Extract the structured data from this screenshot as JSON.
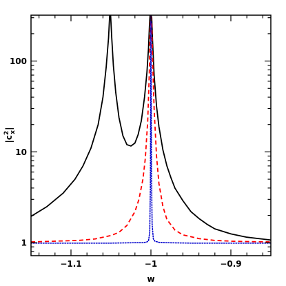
{
  "chart_data": {
    "type": "line",
    "title": "",
    "xlabel": "w",
    "ylabel": {
      "base": "|c",
      "sup": "2",
      "sub": "x",
      "end": "|"
    },
    "xlim": [
      -1.15,
      -0.85
    ],
    "ylim": [
      0.72,
      320
    ],
    "yscale": "log",
    "grid": false,
    "x_ticks": [
      {
        "value": -1.1,
        "label": "−1.1"
      },
      {
        "value": -1.0,
        "label": "−1"
      },
      {
        "value": -0.9,
        "label": "−0.9"
      }
    ],
    "y_ticks": [
      {
        "value": 1,
        "label": "1"
      },
      {
        "value": 10,
        "label": "10"
      },
      {
        "value": 100,
        "label": "100"
      }
    ],
    "series": [
      {
        "style": "solid",
        "color": "#000000",
        "x": [
          -1.15,
          -1.13,
          -1.11,
          -1.095,
          -1.085,
          -1.075,
          -1.066,
          -1.06,
          -1.056,
          -1.053,
          -1.0515,
          -1.0505,
          -1.049,
          -1.047,
          -1.044,
          -1.04,
          -1.035,
          -1.03,
          -1.025,
          -1.02,
          -1.016,
          -1.012,
          -1.008,
          -1.005,
          -1.003,
          -1.0018,
          -1.001,
          -1.0,
          -0.999,
          -0.998,
          -0.996,
          -0.993,
          -0.99,
          -0.985,
          -0.98,
          -0.975,
          -0.97,
          -0.96,
          -0.95,
          -0.94,
          -0.93,
          -0.92,
          -0.9,
          -0.88,
          -0.85
        ],
        "y": [
          1.95,
          2.5,
          3.5,
          5.0,
          7.0,
          11.0,
          20.0,
          40.0,
          85.0,
          180.0,
          330.0,
          330.0,
          180.0,
          90.0,
          45.0,
          24.0,
          15.0,
          12.0,
          11.6,
          12.5,
          15.5,
          22.0,
          40.0,
          75.0,
          140.0,
          250.0,
          330.0,
          330.0,
          300.0,
          170.0,
          70.0,
          32.0,
          19.0,
          10.5,
          7.0,
          5.2,
          4.0,
          2.9,
          2.2,
          1.85,
          1.6,
          1.42,
          1.25,
          1.15,
          1.07
        ]
      },
      {
        "style": "dashed",
        "color": "#ff0000",
        "x": [
          -1.15,
          -1.12,
          -1.09,
          -1.07,
          -1.05,
          -1.04,
          -1.03,
          -1.02,
          -1.015,
          -1.01,
          -1.007,
          -1.004,
          -1.002,
          -1.001,
          -1.0,
          -0.999,
          -0.998,
          -0.996,
          -0.993,
          -0.99,
          -0.985,
          -0.98,
          -0.97,
          -0.96,
          -0.94,
          -0.92,
          -0.9,
          -0.88,
          -0.85
        ],
        "y": [
          1.02,
          1.04,
          1.06,
          1.1,
          1.2,
          1.3,
          1.55,
          2.2,
          3.0,
          5.0,
          8.5,
          22.0,
          75.0,
          200.0,
          330.0,
          250.0,
          110.0,
          30.0,
          9.0,
          4.5,
          2.5,
          1.8,
          1.38,
          1.22,
          1.11,
          1.06,
          1.04,
          1.03,
          1.02
        ]
      },
      {
        "style": "dotted",
        "color": "#0000cc",
        "x": [
          -1.15,
          -1.05,
          -1.02,
          -1.01,
          -1.005,
          -1.003,
          -1.0015,
          -1.0007,
          -1.0003,
          -1.0,
          -0.9997,
          -0.9993,
          -0.9985,
          -0.997,
          -0.995,
          -0.99,
          -0.98,
          -0.95,
          -0.85
        ],
        "y": [
          0.99,
          0.99,
          1.0,
          1.0,
          1.02,
          1.05,
          1.3,
          4.0,
          40.0,
          330.0,
          60.0,
          6.0,
          1.6,
          1.1,
          1.04,
          1.01,
          1.0,
          0.99,
          0.99
        ]
      }
    ]
  }
}
